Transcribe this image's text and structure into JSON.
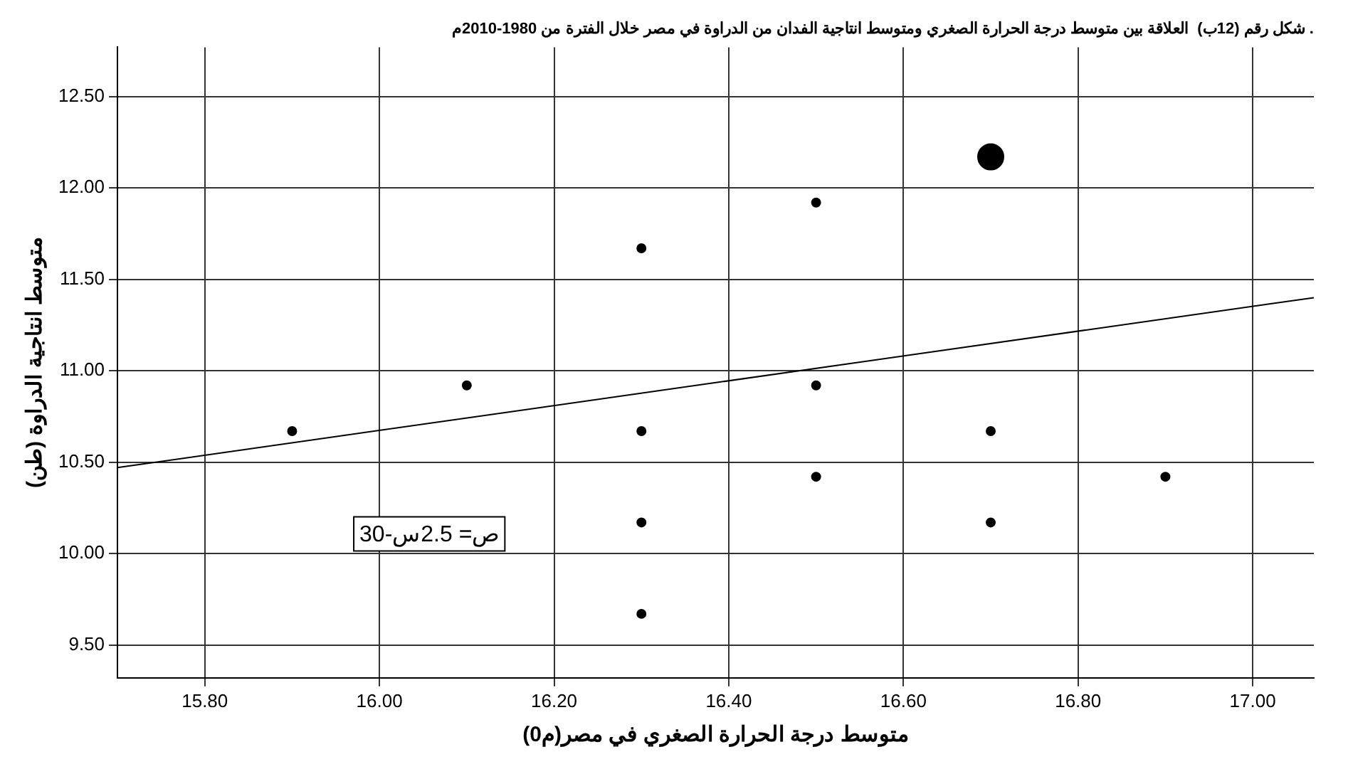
{
  "chart_data": {
    "type": "bubble",
    "title": "شكل رقم (12ب)  العلاقة بين متوسط درجة الحرارة الصغري ومتوسط انتاجية الفدان من الدراوة في مصر خلال الفترة من 1980-2010م .",
    "xlabel": "متوسط درجة الحرارة الصغري في مصر(م0)",
    "ylabel": "متوسط انتاجية الدراوة (طن)",
    "annotations": [
      "ص= 2.5س-30"
    ],
    "series": [
      {
        "color": "#000000",
        "x": [
          15.9,
          16.1,
          16.3,
          16.3,
          16.3,
          16.3,
          16.5,
          16.5,
          16.5,
          16.7,
          16.7,
          16.7,
          16.9
        ],
        "values": [
          10.67,
          10.92,
          11.67,
          10.67,
          10.17,
          9.67,
          11.92,
          10.92,
          10.42,
          12.17,
          10.67,
          10.17,
          10.42
        ],
        "sizes": [
          0.11,
          0.11,
          0.11,
          0.11,
          0.11,
          0.11,
          0.11,
          0.11,
          0.11,
          1,
          0.11,
          0.11,
          0.11
        ]
      },
      {
        "type": "line",
        "color": "#000000",
        "x": [
          15.7,
          17.07
        ],
        "values": [
          10.47,
          11.4
        ]
      }
    ],
    "xlim": [
      15.7,
      17.07
    ],
    "xticks": [
      {
        "value": 15.8,
        "label": "15.80"
      },
      {
        "value": 16,
        "label": "16.00"
      },
      {
        "value": 16.2,
        "label": "16.20"
      },
      {
        "value": 16.4,
        "label": "16.40"
      },
      {
        "value": 16.6,
        "label": "16.60"
      },
      {
        "value": 16.8,
        "label": "16.80"
      },
      {
        "value": 17,
        "label": "17.00"
      }
    ],
    "ylim": [
      9.32,
      12.77
    ],
    "yticks": [
      {
        "value": 9.5,
        "label": "9.50"
      },
      {
        "value": 10,
        "label": "10.00"
      },
      {
        "value": 10.5,
        "label": "10.50"
      },
      {
        "value": 11,
        "label": "11.00"
      },
      {
        "value": 11.5,
        "label": "11.50"
      },
      {
        "value": 12,
        "label": "12.00"
      },
      {
        "value": 12.5,
        "label": "12.50"
      }
    ],
    "grid": true,
    "legend": false
  }
}
